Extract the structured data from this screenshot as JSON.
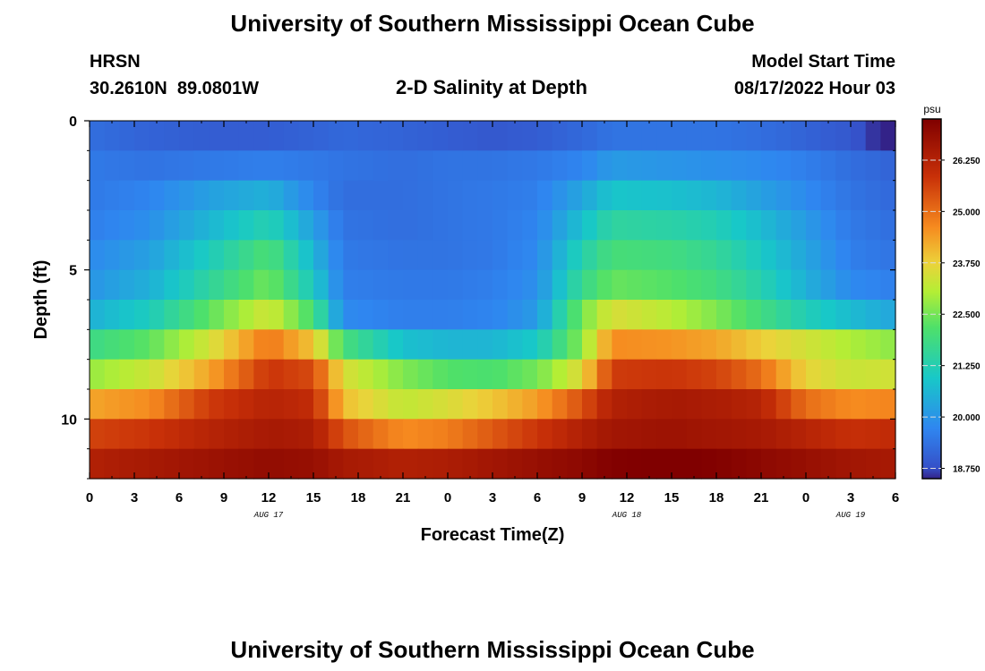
{
  "header": {
    "title": "University of Southern Mississippi Ocean Cube",
    "station": "HRSN",
    "coords": "30.2610N  89.0801W",
    "plot_title": "2-D Salinity at Depth",
    "model_label": "Model Start Time",
    "model_time": "08/17/2022 Hour 03"
  },
  "footer": {
    "title": "University of Southern Mississippi Ocean Cube"
  },
  "chart_data": {
    "type": "heatmap",
    "title": "2-D Salinity at Depth",
    "xlabel": "Forecast Time(Z)",
    "ylabel": "Depth (ft)",
    "xlim": [
      0,
      54
    ],
    "ylim": [
      0,
      12
    ],
    "x_ticks": [
      0,
      3,
      6,
      9,
      12,
      15,
      18,
      21,
      24,
      27,
      30,
      33,
      36,
      39,
      42,
      45,
      48,
      51,
      54
    ],
    "x_tick_labels": [
      "0",
      "3",
      "6",
      "9",
      "12",
      "15",
      "18",
      "21",
      "0",
      "3",
      "6",
      "9",
      "12",
      "15",
      "18",
      "21",
      "0",
      "3",
      "6"
    ],
    "date_labels": [
      {
        "x": 12,
        "label": "AUG 17"
      },
      {
        "x": 36,
        "label": "AUG 18"
      },
      {
        "x": 51,
        "label": "AUG 19"
      }
    ],
    "y_ticks": [
      0,
      5,
      10
    ],
    "y_tick_labels": [
      "0",
      "5",
      "10"
    ],
    "colorbar": {
      "units": "psu",
      "min": 18.5,
      "max": 27.25,
      "ticks": [
        18.75,
        20.0,
        21.25,
        22.5,
        23.75,
        25.0,
        26.25
      ],
      "tick_labels": [
        "18.750",
        "20.000",
        "21.250",
        "22.500",
        "23.750",
        "25.000",
        "26.250"
      ]
    },
    "layer_depths_ft": [
      0.5,
      1.5,
      2.5,
      3.5,
      4.5,
      5.5,
      6.5,
      7.5,
      8.5,
      9.5,
      10.5,
      11.5
    ],
    "key_times": [
      0,
      4,
      8,
      12,
      15,
      17,
      21,
      24,
      27,
      30,
      33,
      35,
      39,
      42,
      45,
      48,
      51,
      54
    ],
    "key_values": [
      [
        19.3,
        19.1,
        19.0,
        19.0,
        19.1,
        19.2,
        19.1,
        19.0,
        18.9,
        19.0,
        19.2,
        19.4,
        19.4,
        19.4,
        19.3,
        19.1,
        18.9,
        18.3
      ],
      [
        19.5,
        19.4,
        19.5,
        19.6,
        19.5,
        19.4,
        19.3,
        19.4,
        19.4,
        19.5,
        19.7,
        20.1,
        20.0,
        19.9,
        19.8,
        19.6,
        19.3,
        19.1
      ],
      [
        19.5,
        19.7,
        20.2,
        20.5,
        19.7,
        19.3,
        19.3,
        19.4,
        19.5,
        19.6,
        20.3,
        20.9,
        20.8,
        20.6,
        20.2,
        19.8,
        19.4,
        19.2
      ],
      [
        19.6,
        19.9,
        20.6,
        21.3,
        20.2,
        19.4,
        19.3,
        19.4,
        19.5,
        19.7,
        20.8,
        21.5,
        21.4,
        21.2,
        20.7,
        20.1,
        19.5,
        19.3
      ],
      [
        19.8,
        20.2,
        21.1,
        22.1,
        20.6,
        19.5,
        19.4,
        19.4,
        19.5,
        19.8,
        21.3,
        22.0,
        21.9,
        21.6,
        21.0,
        20.3,
        19.6,
        19.4
      ],
      [
        20.0,
        20.5,
        21.5,
        22.5,
        21.0,
        19.6,
        19.5,
        19.5,
        19.6,
        19.9,
        21.7,
        22.4,
        22.2,
        21.9,
        21.3,
        20.5,
        19.8,
        19.6
      ],
      [
        20.5,
        21.1,
        22.3,
        23.4,
        22.0,
        19.8,
        19.6,
        19.6,
        19.7,
        20.1,
        22.5,
        23.5,
        23.1,
        22.6,
        21.9,
        21.2,
        20.7,
        20.3
      ],
      [
        21.8,
        22.3,
        23.4,
        24.9,
        23.9,
        22.0,
        20.8,
        20.6,
        20.6,
        21.0,
        22.7,
        24.6,
        24.5,
        24.3,
        23.8,
        23.4,
        23.0,
        22.7
      ],
      [
        22.8,
        23.3,
        24.3,
        25.8,
        25.5,
        23.5,
        22.6,
        22.2,
        22.1,
        22.5,
        23.6,
        25.7,
        25.8,
        25.6,
        25.0,
        23.7,
        23.3,
        23.4
      ],
      [
        24.3,
        24.6,
        25.7,
        26.2,
        26.0,
        24.0,
        23.2,
        23.5,
        23.9,
        24.4,
        25.4,
        26.3,
        26.5,
        26.4,
        26.2,
        25.0,
        24.6,
        24.7
      ],
      [
        25.6,
        25.8,
        26.2,
        26.5,
        26.4,
        25.4,
        24.6,
        24.8,
        25.3,
        25.8,
        26.3,
        26.6,
        26.7,
        26.6,
        26.5,
        26.2,
        25.9,
        26.0
      ],
      [
        26.3,
        26.5,
        26.7,
        26.9,
        26.8,
        26.5,
        26.3,
        26.4,
        26.6,
        26.8,
        27.0,
        27.2,
        27.3,
        27.2,
        27.0,
        26.8,
        26.6,
        26.5
      ]
    ]
  }
}
